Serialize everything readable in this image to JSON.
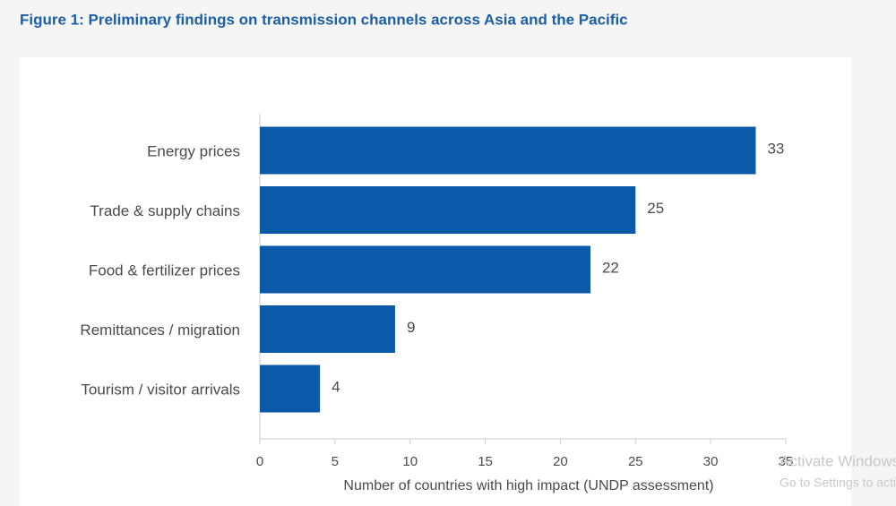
{
  "chart_data": {
    "type": "hbar",
    "title": "Figure 1: Preliminary findings on transmission channels across Asia and the Pacific",
    "x_label": "Number of countries with high impact (UNDP assessment)",
    "categories": [
      "Energy prices",
      "Trade & supply chains",
      "Food & fertilizer prices",
      "Remittances / migration",
      "Tourism / visitor arrivals"
    ],
    "values": [
      33,
      25,
      22,
      9,
      4
    ],
    "color": "#0b5aa9",
    "xlim": [
      0,
      35
    ],
    "xticks": [
      0,
      5,
      10,
      15,
      20,
      25,
      30,
      35
    ],
    "grid": false
  },
  "watermark": {
    "title": "Activate Windows",
    "subtitle": "Go to Settings to activate Windows."
  }
}
